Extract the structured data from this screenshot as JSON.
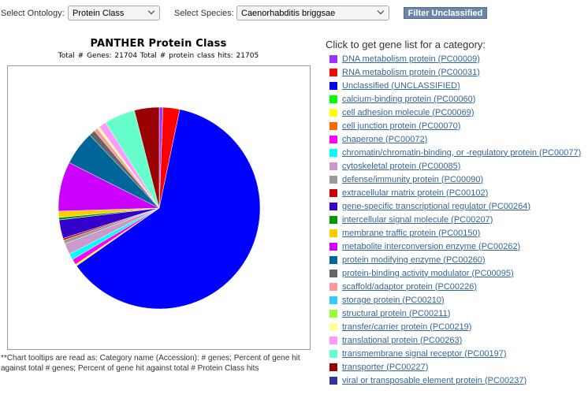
{
  "controls": {
    "ontology_label": "Select Ontology:",
    "ontology_value": "Protein Class",
    "species_label": "Select Species:",
    "species_value": "Caenorhabditis briggsae",
    "filter_button": "Filter Unclassified"
  },
  "chart_data": {
    "type": "pie",
    "title": "PANTHER Protein Class",
    "subtitle": "Total # Genes: 21704   Total # protein class hits: 21705",
    "slices": [
      {
        "category": "DNA metabolism protein (PC00009)",
        "percent": 0.6,
        "color": "#9933ff"
      },
      {
        "category": "RNA metabolism protein (PC00031)",
        "percent": 2.7,
        "color": "#ff0000"
      },
      {
        "category": "Unclassified (UNCLASSIFIED)",
        "percent": 62.5,
        "color": "#0000ff"
      },
      {
        "category": "calcium-binding protein (PC00060)",
        "percent": 0.0,
        "color": "#00ff00"
      },
      {
        "category": "cell adhesion molecule (PC00069)",
        "percent": 0.3,
        "color": "#ffff00"
      },
      {
        "category": "cell junction protein (PC00070)",
        "percent": 0.0,
        "color": "#ff6600"
      },
      {
        "category": "chaperone (PC00072)",
        "percent": 0.9,
        "color": "#ff00ff"
      },
      {
        "category": "chromatin/chromatin-binding, or -regulatory protein (PC00077)",
        "percent": 1.0,
        "color": "#00ffff"
      },
      {
        "category": "cytoskeletal protein (PC00085)",
        "percent": 1.8,
        "color": "#cc99cc"
      },
      {
        "category": "defense/immunity protein (PC00090)",
        "percent": 0.6,
        "color": "#999999"
      },
      {
        "category": "extracellular matrix protein (PC00102)",
        "percent": 0.3,
        "color": "#cc0000"
      },
      {
        "category": "gene-specific transcriptional regulator (PC00264)",
        "percent": 3.0,
        "color": "#3300cc"
      },
      {
        "category": "intercellular signal molecule (PC00207)",
        "percent": 0.4,
        "color": "#009900"
      },
      {
        "category": "membrane traffic protein (PC00150)",
        "percent": 1.0,
        "color": "#ffcc00"
      },
      {
        "category": "metabolite interconversion enzyme (PC00262)",
        "percent": 8.0,
        "color": "#cc00ff"
      },
      {
        "category": "protein modifying enzyme (PC00260)",
        "percent": 5.5,
        "color": "#006699"
      },
      {
        "category": "protein-binding activity modulator (PC00095)",
        "percent": 1.0,
        "color": "#666666"
      },
      {
        "category": "scaffold/adaptor protein (PC00226)",
        "percent": 0.6,
        "color": "#ff9999"
      },
      {
        "category": "storage protein (PC00210)",
        "percent": 0.0,
        "color": "#33ccff"
      },
      {
        "category": "structural protein (PC00211)",
        "percent": 0.0,
        "color": "#99ff33"
      },
      {
        "category": "transfer/carrier protein (PC00219)",
        "percent": 0.4,
        "color": "#ffff99"
      },
      {
        "category": "translational protein (PC00263)",
        "percent": 1.2,
        "color": "#ff99ff"
      },
      {
        "category": "transmembrane signal receptor (PC00197)",
        "percent": 5.0,
        "color": "#66ffcc"
      },
      {
        "category": "transporter (PC00227)",
        "percent": 4.0,
        "color": "#990000"
      },
      {
        "category": "viral or transposable element protein (PC00237)",
        "percent": 0.0,
        "color": "#333399"
      }
    ]
  },
  "footnote": "**Chart tooltips are read as: Category name (Accession): # genes; Percent of gene hit against total # genes; Percent of gene hit against total # Protein Class hits",
  "legend": {
    "title": "Click to get gene list for a category:"
  }
}
